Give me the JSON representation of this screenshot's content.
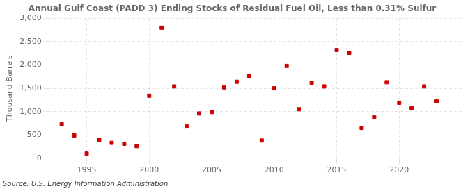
{
  "chart_data": {
    "type": "scatter",
    "title": "Annual Gulf Coast (PADD 3) Ending Stocks of Residual Fuel Oil, Less than 0.31% Sulfur",
    "ylabel": "Thousand Barrels",
    "annotations": [
      "Source: U.S. Energy Information Administration"
    ],
    "x": [
      1993,
      1994,
      1995,
      1996,
      1997,
      1998,
      1999,
      2000,
      2001,
      2002,
      2003,
      2004,
      2005,
      2006,
      2007,
      2008,
      2009,
      2010,
      2011,
      2012,
      2013,
      2014,
      2015,
      2016,
      2017,
      2018,
      2019,
      2020,
      2021,
      2022,
      2023
    ],
    "values": [
      730,
      490,
      100,
      400,
      330,
      310,
      260,
      1340,
      2800,
      1540,
      680,
      960,
      990,
      1520,
      1640,
      1770,
      380,
      1500,
      1980,
      1050,
      1620,
      1540,
      2320,
      2260,
      650,
      880,
      1630,
      1190,
      1070,
      1540,
      1220
    ],
    "color": "#cc0000",
    "marker": "square",
    "xlim": [
      1992.0,
      2025.0
    ],
    "xticks": [
      1995,
      2000,
      2005,
      2010,
      2015,
      2020
    ],
    "ylim": [
      0,
      3000
    ],
    "yticks": [
      0,
      500,
      {
        "value": 1000,
        "label": "1,000"
      },
      {
        "value": 1500,
        "label": "1,500"
      },
      {
        "value": 2000,
        "label": "2,000"
      },
      {
        "value": 2500,
        "label": "2,500"
      },
      {
        "value": 3000,
        "label": "3,000"
      }
    ],
    "grid": true
  }
}
